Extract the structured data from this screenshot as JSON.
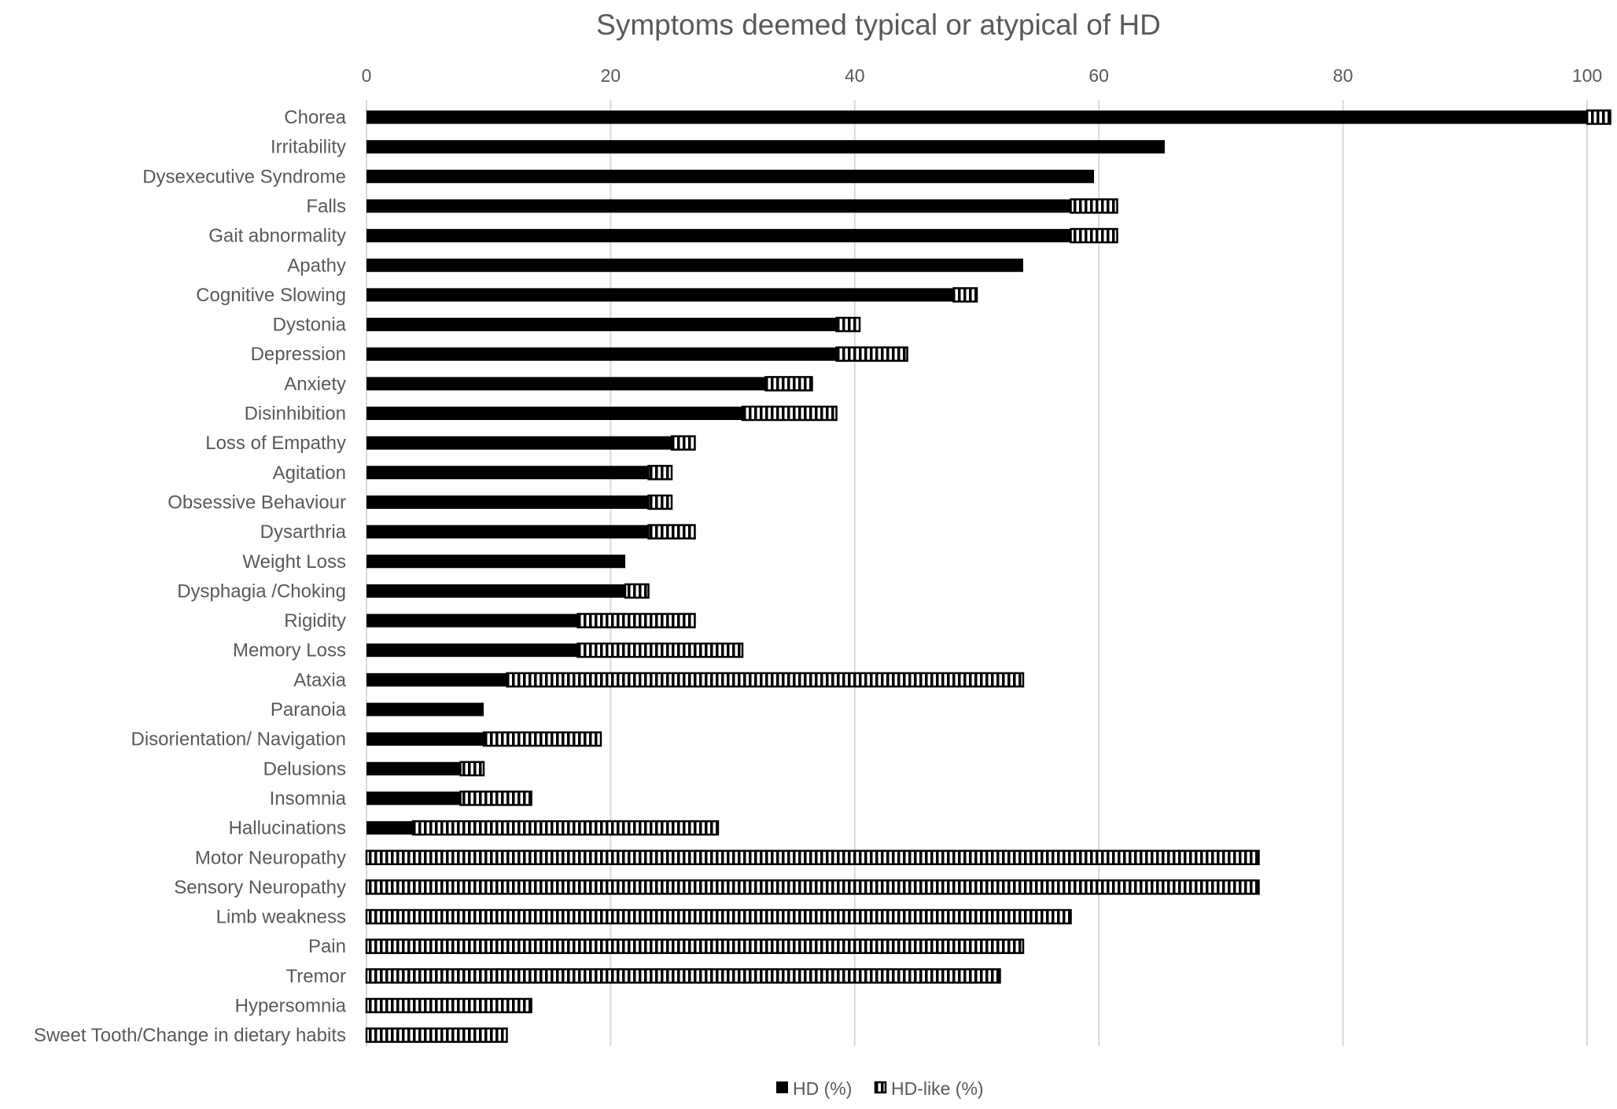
{
  "chart_data": {
    "type": "bar",
    "orientation": "horizontal",
    "stacked": true,
    "title": "Symptoms deemed typical or atypical of HD",
    "xlabel": "",
    "ylabel": "",
    "xlim": [
      0,
      102
    ],
    "xticks": [
      0,
      20,
      40,
      60,
      80,
      100
    ],
    "grid": true,
    "legend_position": "bottom",
    "categories": [
      "Chorea",
      "Irritability",
      "Dysexecutive Syndrome",
      "Falls",
      "Gait abnormality",
      "Apathy",
      "Cognitive Slowing",
      "Dystonia",
      "Depression",
      "Anxiety",
      "Disinhibition",
      "Loss of Empathy",
      "Agitation",
      "Obsessive Behaviour",
      "Dysarthria",
      "Weight Loss",
      "Dysphagia /Choking",
      "Rigidity",
      "Memory Loss",
      "Ataxia",
      "Paranoia",
      "Disorientation/ Navigation",
      "Delusions",
      "Insomnia",
      "Hallucinations",
      "Motor Neuropathy",
      "Sensory Neuropathy",
      "Limb weakness",
      "Pain",
      "Tremor",
      "Hypersomnia",
      "Sweet Tooth/Change in dietary habits"
    ],
    "series": [
      {
        "name": "HD (%)",
        "style": "solid",
        "color": "#000000",
        "values": [
          100,
          65.4,
          59.6,
          57.7,
          57.7,
          53.8,
          48.1,
          38.5,
          38.5,
          32.7,
          30.8,
          25,
          23.1,
          23.1,
          23.1,
          21.2,
          21.2,
          17.3,
          17.3,
          11.5,
          9.6,
          9.6,
          7.7,
          7.7,
          3.8,
          0,
          0,
          0,
          0,
          0,
          0,
          0
        ]
      },
      {
        "name": "HD-like (%)",
        "style": "hatched",
        "color": "#000000",
        "values": [
          1.9,
          0,
          0,
          3.8,
          3.8,
          0,
          1.9,
          1.9,
          5.8,
          3.8,
          7.7,
          1.9,
          1.9,
          1.9,
          3.8,
          0,
          1.9,
          9.6,
          13.5,
          42.3,
          0,
          9.6,
          1.9,
          5.8,
          25,
          73.1,
          73.1,
          57.7,
          53.8,
          51.9,
          13.5,
          11.5
        ]
      }
    ]
  }
}
